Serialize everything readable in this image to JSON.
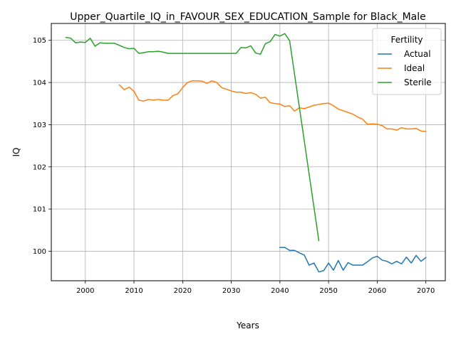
{
  "chart_data": {
    "type": "line",
    "title": "Upper_Quartile_IQ_in_FAVOUR_SEX_EDUCATION_Sample for Black_Male",
    "xlabel": "Years",
    "ylabel": "IQ",
    "xlim": [
      1993,
      2074
    ],
    "ylim": [
      99.3,
      105.4
    ],
    "xticks": [
      2000,
      2010,
      2020,
      2030,
      2040,
      2050,
      2060,
      2070
    ],
    "yticks": [
      100,
      101,
      102,
      103,
      104,
      105
    ],
    "grid": true,
    "legend": {
      "title": "Fertility",
      "placement": "top-right"
    },
    "series": [
      {
        "name": "Actual",
        "color": "#1f77b4",
        "x": [
          2040,
          2041,
          2042,
          2043,
          2044,
          2045,
          2046,
          2047,
          2048,
          2049,
          2050,
          2051,
          2052,
          2053,
          2054,
          2055,
          2056,
          2057,
          2058,
          2059,
          2060,
          2061,
          2062,
          2063,
          2064,
          2065,
          2066,
          2067,
          2068,
          2069,
          2070
        ],
        "y": [
          100.09,
          100.09,
          100.02,
          100.02,
          99.96,
          99.91,
          99.67,
          99.72,
          99.51,
          99.54,
          99.72,
          99.55,
          99.78,
          99.55,
          99.73,
          99.67,
          99.67,
          99.67,
          99.75,
          99.84,
          99.88,
          99.79,
          99.76,
          99.7,
          99.76,
          99.7,
          99.86,
          99.72,
          99.9,
          99.76,
          99.85
        ]
      },
      {
        "name": "Ideal",
        "color": "#ff7f0e",
        "x": [
          2007,
          2008,
          2009,
          2010,
          2011,
          2012,
          2013,
          2014,
          2015,
          2016,
          2017,
          2018,
          2019,
          2020,
          2021,
          2022,
          2023,
          2024,
          2025,
          2026,
          2027,
          2028,
          2029,
          2030,
          2031,
          2032,
          2033,
          2034,
          2035,
          2036,
          2037,
          2038,
          2039,
          2040,
          2041,
          2042,
          2043,
          2044,
          2045,
          2046,
          2047,
          2048,
          2049,
          2050,
          2051,
          2052,
          2053,
          2054,
          2055,
          2056,
          2057,
          2058,
          2059,
          2060,
          2061,
          2062,
          2063,
          2064,
          2065,
          2066,
          2067,
          2068,
          2069,
          2070
        ],
        "y": [
          103.94,
          103.83,
          103.89,
          103.79,
          103.58,
          103.56,
          103.6,
          103.58,
          103.6,
          103.58,
          103.58,
          103.69,
          103.73,
          103.88,
          104.0,
          104.04,
          104.04,
          104.03,
          103.98,
          104.04,
          104.0,
          103.88,
          103.84,
          103.8,
          103.77,
          103.77,
          103.74,
          103.76,
          103.72,
          103.63,
          103.65,
          103.52,
          103.5,
          103.49,
          103.43,
          103.45,
          103.32,
          103.4,
          103.38,
          103.42,
          103.46,
          103.48,
          103.5,
          103.51,
          103.45,
          103.37,
          103.33,
          103.29,
          103.25,
          103.18,
          103.13,
          103.01,
          103.02,
          103.01,
          102.98,
          102.9,
          102.9,
          102.87,
          102.93,
          102.9,
          102.9,
          102.91,
          102.85,
          102.84
        ]
      },
      {
        "name": "Sterile",
        "color": "#2ca02c",
        "x": [
          1996,
          1997,
          1998,
          1999,
          2000,
          2001,
          2002,
          2003,
          2004,
          2005,
          2006,
          2007,
          2008,
          2009,
          2010,
          2011,
          2012,
          2013,
          2014,
          2015,
          2016,
          2017,
          2018,
          2019,
          2020,
          2021,
          2022,
          2023,
          2024,
          2025,
          2026,
          2027,
          2028,
          2029,
          2030,
          2031,
          2032,
          2033,
          2034,
          2035,
          2036,
          2037,
          2038,
          2039,
          2040,
          2041,
          2042,
          2048
        ],
        "y": [
          105.07,
          105.05,
          104.94,
          104.96,
          104.95,
          105.05,
          104.86,
          104.94,
          104.93,
          104.93,
          104.93,
          104.88,
          104.83,
          104.8,
          104.81,
          104.69,
          104.71,
          104.73,
          104.73,
          104.74,
          104.72,
          104.69,
          104.69,
          104.69,
          104.69,
          104.69,
          104.69,
          104.69,
          104.69,
          104.69,
          104.69,
          104.69,
          104.69,
          104.69,
          104.69,
          104.69,
          104.83,
          104.82,
          104.87,
          104.7,
          104.67,
          104.92,
          104.97,
          105.14,
          105.1,
          105.16,
          104.99,
          100.25
        ]
      }
    ]
  }
}
